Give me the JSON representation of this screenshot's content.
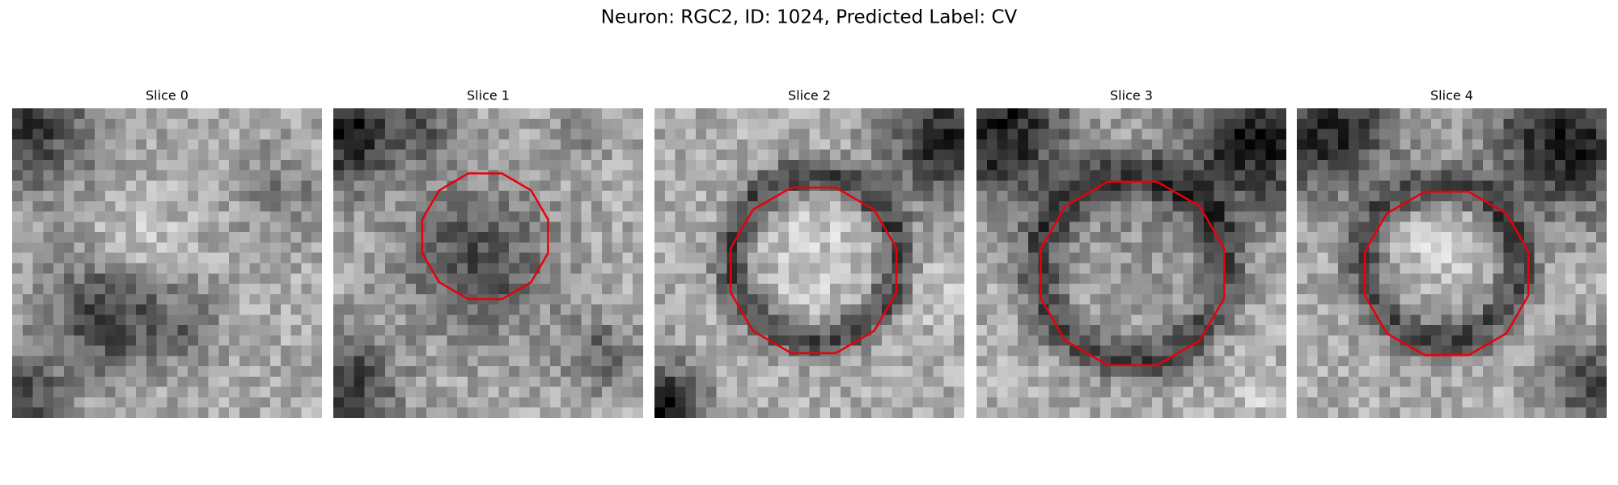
{
  "title": "Neuron: RGC2, ID: 1024, Predicted Label: CV",
  "panels": [
    {
      "title": "Slice 0"
    },
    {
      "title": "Slice 1"
    },
    {
      "title": "Slice 2"
    },
    {
      "title": "Slice 3"
    },
    {
      "title": "Slice 4"
    }
  ]
}
